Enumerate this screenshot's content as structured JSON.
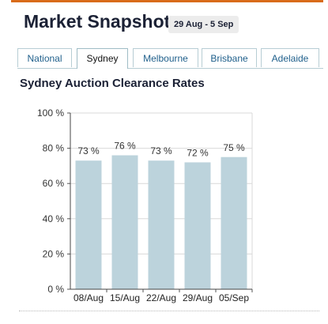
{
  "header": {
    "title": "Market Snapshot",
    "date_range": "29 Aug - 5 Sep"
  },
  "tabs": [
    {
      "label": "National",
      "active": false
    },
    {
      "label": "Sydney",
      "active": true
    },
    {
      "label": "Melbourne",
      "active": false
    },
    {
      "label": "Brisbane",
      "active": false
    },
    {
      "label": "Adelaide",
      "active": false
    }
  ],
  "colors": {
    "accent": "#d96b1a",
    "bar": "#bcd3dc",
    "grid": "#d9d9d9",
    "text": "#1b2135",
    "tab_link": "#1f5f8b"
  },
  "chart_data": {
    "type": "bar",
    "title": "Sydney Auction Clearance Rates",
    "xlabel": "",
    "ylabel": "",
    "categories": [
      "08/Aug",
      "15/Aug",
      "22/Aug",
      "29/Aug",
      "05/Sep"
    ],
    "values": [
      73,
      76,
      73,
      72,
      75
    ],
    "data_labels": [
      "73 %",
      "76 %",
      "73 %",
      "72 %",
      "75 %"
    ],
    "ylim": [
      0,
      100
    ],
    "y_ticks": [
      0,
      20,
      40,
      60,
      80,
      100
    ],
    "y_tick_labels": [
      "0 %",
      "20 %",
      "40 %",
      "60 %",
      "80 %",
      "100 %"
    ],
    "grid": true
  }
}
